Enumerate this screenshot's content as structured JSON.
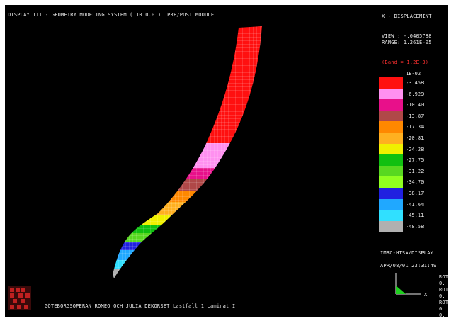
{
  "header": {
    "title": "DISPLAY III - GEOMETRY MODELING SYSTEM ( 10.0.0 )  PRE/POST MODULE"
  },
  "panel": {
    "result_type": "X - DISPLACEMENT",
    "view": "VIEW : -.0405788",
    "range": "RANGE: 1.261E-05",
    "band_header": "(Band = 1.2E-3)",
    "program": "IMRC-HISA/DISPLAY",
    "timestamp": "APR/08/01 23:31:49",
    "axis_x": "X",
    "rot_labels": [
      "ROT",
      "0.",
      "ROT",
      "0.",
      "ROT",
      "0.",
      "0."
    ]
  },
  "legend": {
    "top_label": "1E-02",
    "entries": [
      {
        "color": "#ff1010",
        "label": "-3.458"
      },
      {
        "color": "#ff90f0",
        "label": "-6.929"
      },
      {
        "color": "#e8108a",
        "label": "-10.40"
      },
      {
        "color": "#b04848",
        "label": "-13.87"
      },
      {
        "color": "#ff8800",
        "label": "-17.34"
      },
      {
        "color": "#ffb020",
        "label": "-20.81"
      },
      {
        "color": "#f0f000",
        "label": "-24.28"
      },
      {
        "color": "#10c010",
        "label": "-27.75"
      },
      {
        "color": "#58d820",
        "label": "-31.22"
      },
      {
        "color": "#90ff20",
        "label": "-34.70"
      },
      {
        "color": "#2020e0",
        "label": "-38.17"
      },
      {
        "color": "#20a8ff",
        "label": "-41.64"
      },
      {
        "color": "#30e0ff",
        "label": "-45.11"
      },
      {
        "color": "#b0b0b0",
        "label": "-48.58"
      }
    ]
  },
  "model": {
    "band_colors": [
      "#ff1010",
      "#ff90f0",
      "#e8108a",
      "#b04848",
      "#ff8800",
      "#ffb020",
      "#f0f000",
      "#10c010",
      "#58d820",
      "#2020e0",
      "#20a8ff",
      "#30e0ff",
      "#b0b0b0"
    ]
  },
  "footer": {
    "description": "GÖTEBORGSOPERAN ROMEO OCH JULIA DEKORSET Lastfall 1 Laminat I"
  }
}
